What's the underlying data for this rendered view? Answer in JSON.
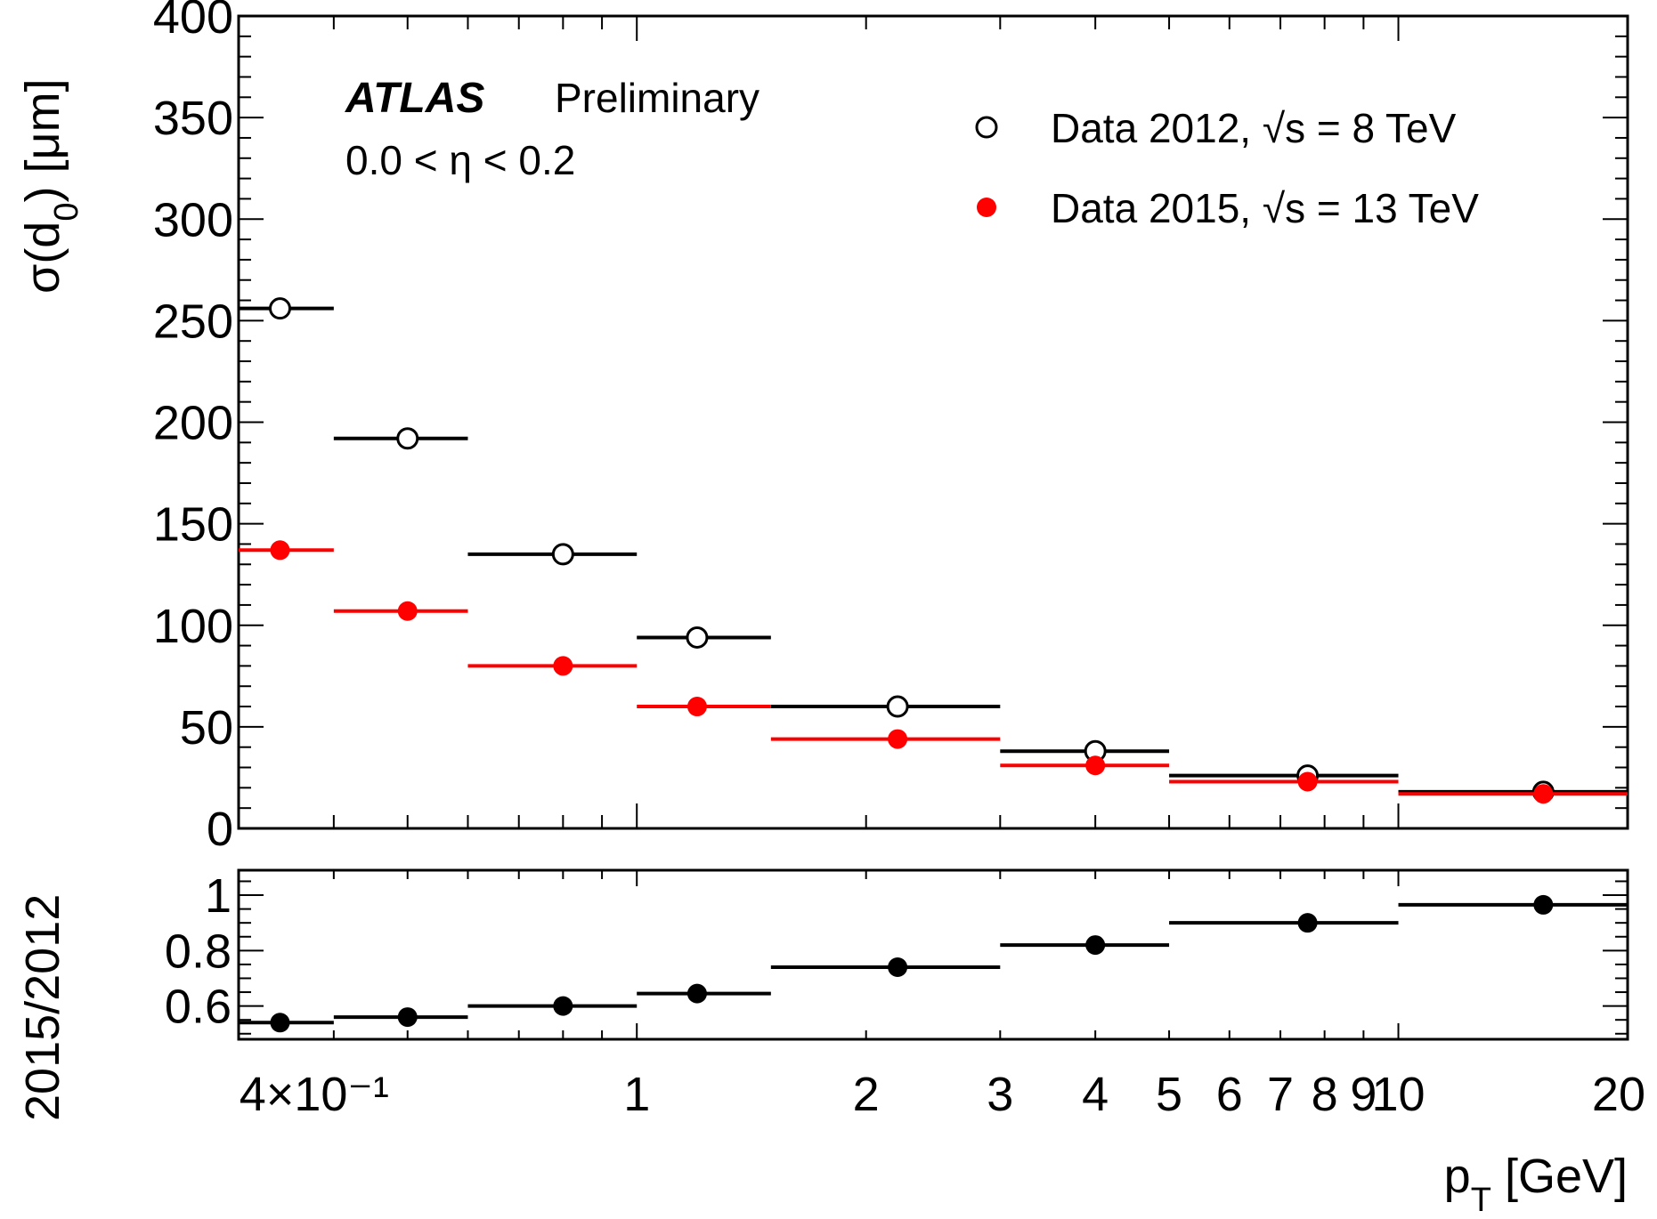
{
  "chart_data": [
    {
      "type": "scatter",
      "panel": "main",
      "xlabel": "p_T [GeV]",
      "ylabel": "σ(d_0) [μm]",
      "xscale": "log",
      "xlim": [
        0.3,
        20
      ],
      "ylim": [
        0,
        400
      ],
      "yticks": [
        0,
        50,
        100,
        150,
        200,
        250,
        300,
        350,
        400
      ],
      "xtick_labels": [
        {
          "x": 0.4,
          "label": "4×10⁻¹"
        },
        {
          "x": 1,
          "label": "1"
        },
        {
          "x": 2,
          "label": "2"
        },
        {
          "x": 3,
          "label": "3"
        },
        {
          "x": 4,
          "label": "4"
        },
        {
          "x": 5,
          "label": "5"
        },
        {
          "x": 6,
          "label": "6"
        },
        {
          "x": 7,
          "label": "7"
        },
        {
          "x": 8,
          "label": "8"
        },
        {
          "x": 9,
          "label": "9"
        },
        {
          "x": 10,
          "label": "10"
        },
        {
          "x": 20,
          "label": "20"
        }
      ],
      "bin_edges": [
        0.3,
        0.4,
        0.6,
        1.0,
        1.5,
        3.0,
        5.0,
        10.0,
        20.0
      ],
      "series": [
        {
          "name": "Data 2012, √s = 8 TeV",
          "marker": "open-circle",
          "color": "#000000",
          "x": [
            0.34,
            0.5,
            0.8,
            1.2,
            2.2,
            4.0,
            7.6,
            15.5
          ],
          "y": [
            256,
            192,
            135,
            94,
            60,
            38,
            26,
            18
          ]
        },
        {
          "name": "Data 2015, √s = 13 TeV",
          "marker": "filled-circle",
          "color": "#ff0000",
          "x": [
            0.34,
            0.5,
            0.8,
            1.2,
            2.2,
            4.0,
            7.6,
            15.5
          ],
          "y": [
            137,
            107,
            80,
            60,
            44,
            31,
            23,
            17
          ]
        }
      ],
      "annotations": {
        "experiment": "ATLAS",
        "status": "Preliminary",
        "selection": "0.0 < η < 0.2"
      },
      "legend_placement": "top-right"
    },
    {
      "type": "scatter",
      "panel": "ratio",
      "xlabel": "p_T [GeV]",
      "ylabel": "2015/2012",
      "xscale": "log",
      "xlim": [
        0.3,
        20
      ],
      "ylim": [
        0.48,
        1.09
      ],
      "yticks": [
        0.6,
        0.8,
        1
      ],
      "ytick_labels": [
        "0.6",
        "0.8",
        "1"
      ],
      "bin_edges": [
        0.3,
        0.4,
        0.6,
        1.0,
        1.5,
        3.0,
        5.0,
        10.0,
        20.0
      ],
      "series": [
        {
          "marker": "filled-circle",
          "color": "#000000",
          "x": [
            0.34,
            0.5,
            0.8,
            1.2,
            2.2,
            4.0,
            7.6,
            15.5
          ],
          "y": [
            0.54,
            0.56,
            0.6,
            0.645,
            0.74,
            0.82,
            0.9,
            0.965
          ],
          "yerr": [
            0,
            0,
            0,
            0,
            0,
            0,
            0,
            0.05
          ]
        }
      ]
    }
  ]
}
